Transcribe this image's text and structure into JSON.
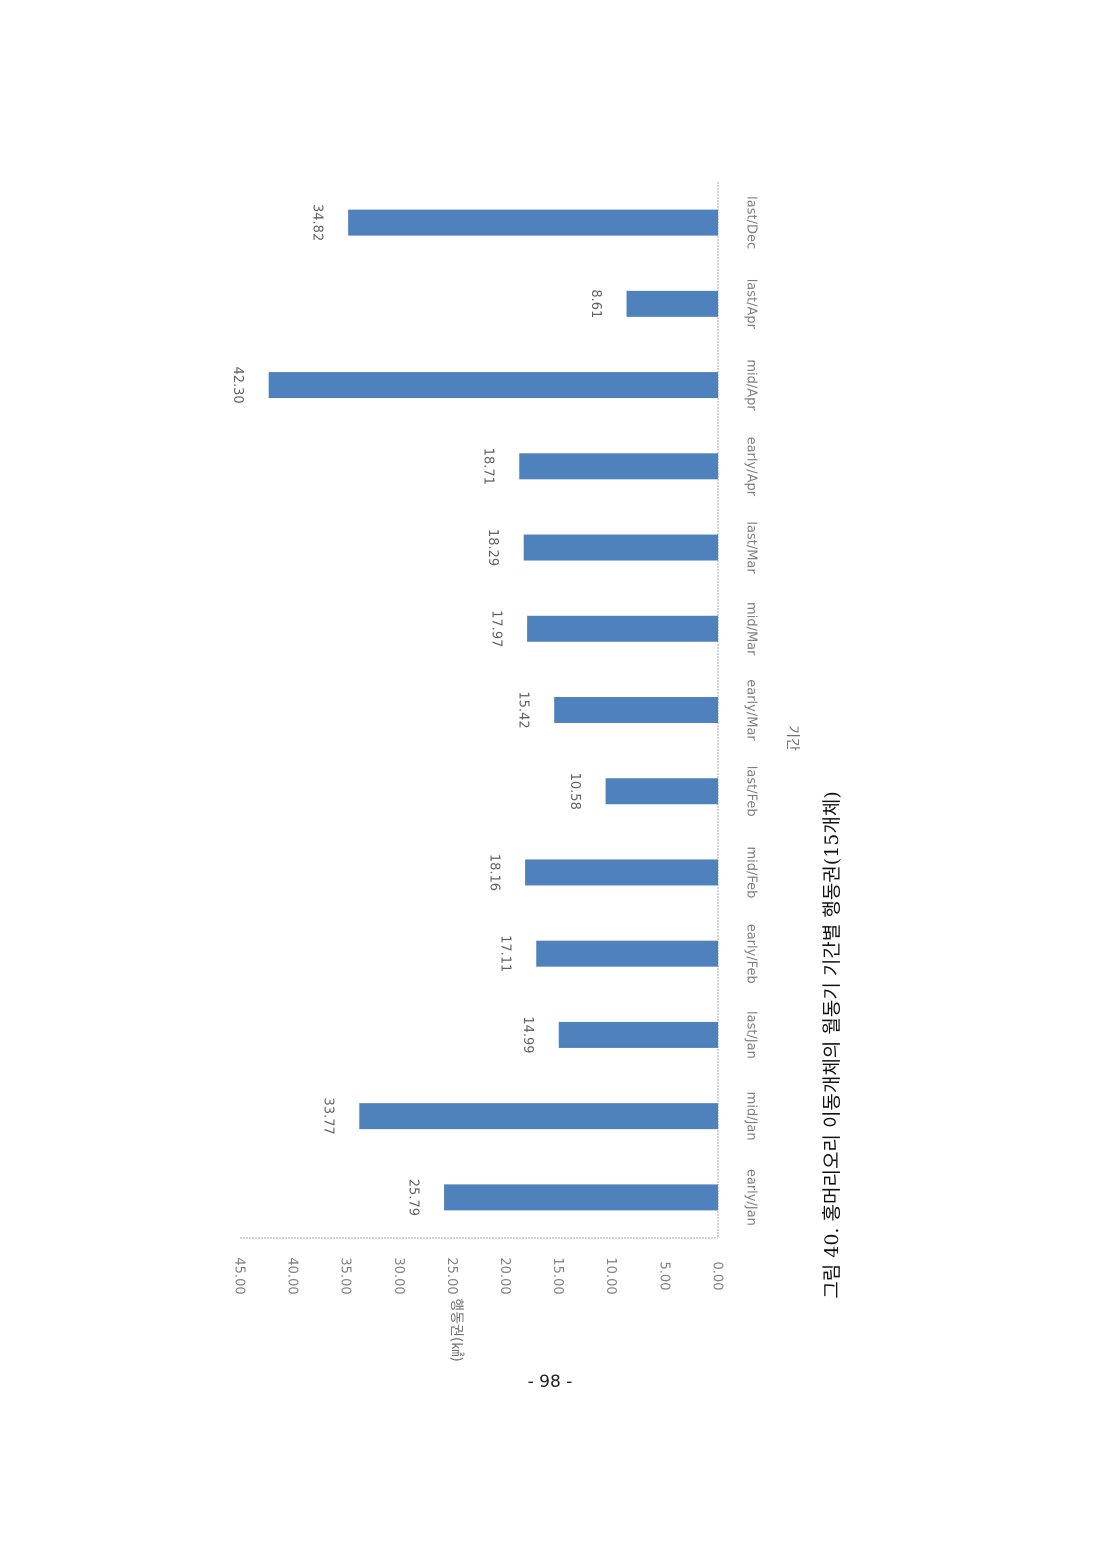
{
  "page_number": "- 98 -",
  "caption": "그림 40. 홍머리오리 이동개체의 월동기 기간별 행동권(15개체)",
  "chart_data": {
    "type": "bar",
    "orientation": "rotated-90-ccw",
    "categories": [
      "earlyJan",
      "midJan",
      "lastJan",
      "earlyFeb",
      "midFeb",
      "lastFeb",
      "earlyMar",
      "midMar",
      "lastMar",
      "earlyApr",
      "midApr",
      "lastApr",
      "lastDec"
    ],
    "category_labels": [
      "early/Jan",
      "mid/Jan",
      "last/Jan",
      "early/Feb",
      "mid/Feb",
      "last/Feb",
      "early/Mar",
      "mid/Mar",
      "last/Mar",
      "early/Apr",
      "mid/Apr",
      "last/Apr",
      "last/Dec"
    ],
    "values": [
      25.79,
      33.77,
      14.99,
      17.11,
      18.16,
      10.58,
      15.42,
      17.97,
      18.29,
      18.71,
      42.3,
      8.61,
      34.82
    ],
    "value_labels": [
      "25.79",
      "33.77",
      "14.99",
      "17.11",
      "18.16",
      "10.58",
      "15.42",
      "17.97",
      "18.29",
      "18.71",
      "42.30",
      "8.61",
      "34.82"
    ],
    "xlabel": "기간",
    "ylabel": "행동권(㎢)",
    "ylim": [
      0,
      45
    ],
    "yticks": [
      "0.00",
      "5.00",
      "10.00",
      "15.00",
      "20.00",
      "25.00",
      "30.00",
      "35.00",
      "40.00",
      "45.00"
    ],
    "bar_color": "#4f81bd",
    "grid": false
  }
}
